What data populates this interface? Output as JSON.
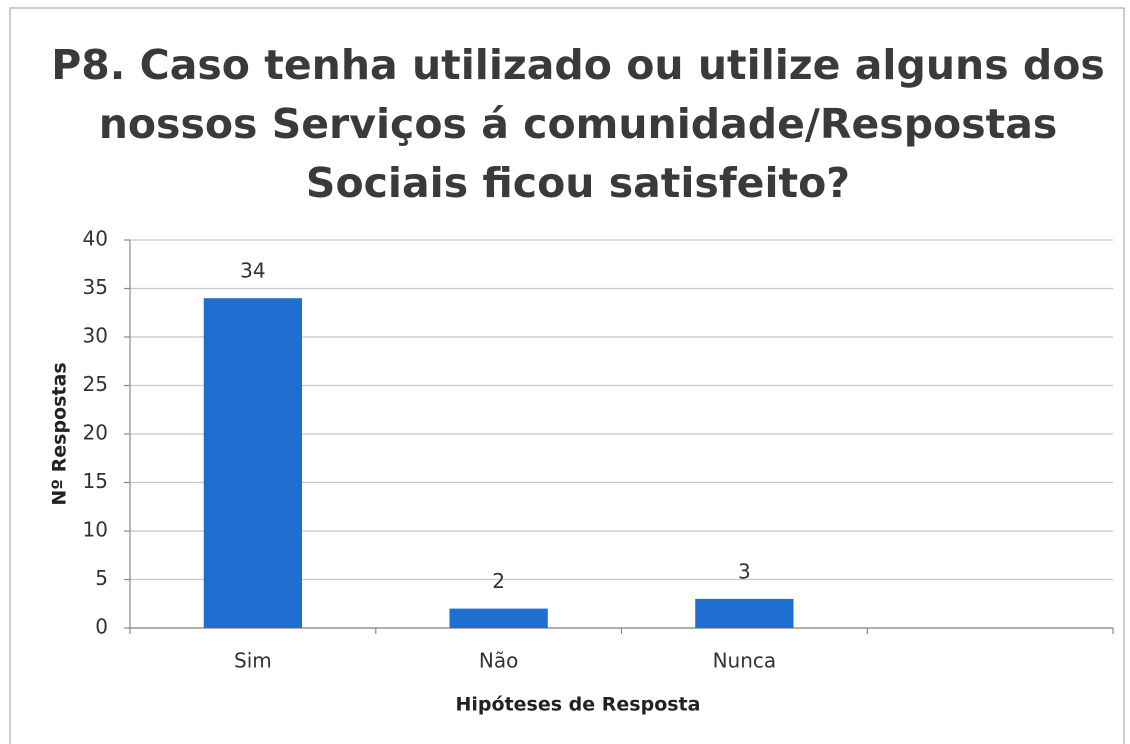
{
  "chart_data": {
    "type": "bar",
    "title": [
      "P8. Caso tenha utilizado ou utilize alguns dos",
      "nossos Serviços á comunidade/Respostas",
      "Sociais ficou satisfeito?"
    ],
    "x_label": "Hipóteses de Resposta",
    "y_label": "Nº Respostas",
    "categories": [
      "Sim",
      "Não",
      "Nunca",
      null
    ],
    "values": [
      34,
      2,
      3,
      null
    ],
    "color": "#1f6fd1",
    "ylim": [
      0,
      40
    ],
    "yticks": [
      0,
      5,
      10,
      15,
      20,
      25,
      30,
      35,
      40
    ],
    "grid": true
  }
}
